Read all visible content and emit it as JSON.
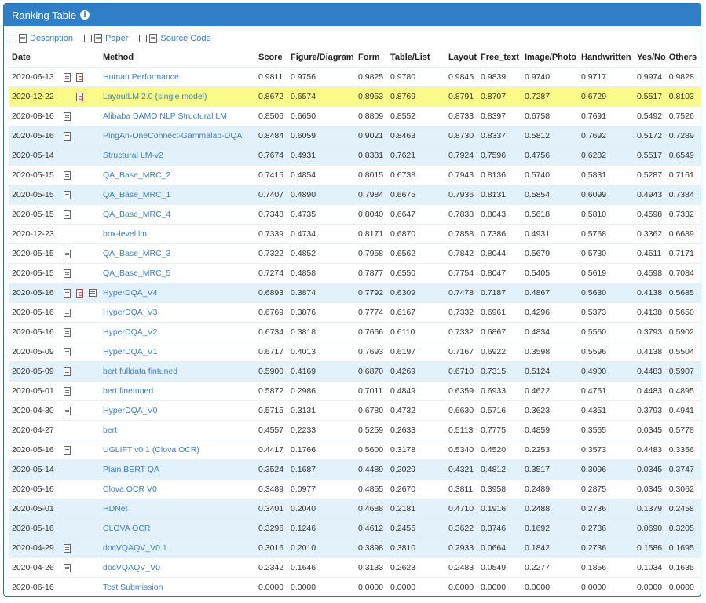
{
  "panel": {
    "title": "Ranking Table"
  },
  "filters": {
    "description": "Description",
    "paper": "Paper",
    "source_code": "Source Code"
  },
  "table": {
    "headers": [
      "Date",
      "Method",
      "Score",
      "Figure/Diagram",
      "Form",
      "Table/List",
      "Layout",
      "Free_text",
      "Image/Photo",
      "Handwritten",
      "Yes/No",
      "Others"
    ],
    "rows": [
      {
        "date": "2020-06-13",
        "icons": [
          "doc",
          "pdf"
        ],
        "method": "Human Performance",
        "values": [
          "0.9811",
          "0.9756",
          "0.9825",
          "0.9780",
          "0.9845",
          "0.9839",
          "0.9740",
          "0.9717",
          "0.9974",
          "0.9828"
        ],
        "style": ""
      },
      {
        "date": "2020-12-22",
        "icons": [
          "",
          "pdf"
        ],
        "method": "LayoutLM 2.0 (single model)",
        "values": [
          "0.8672",
          "0.6574",
          "0.8953",
          "0.8769",
          "0.8791",
          "0.8707",
          "0.7287",
          "0.6729",
          "0.5517",
          "0.8103"
        ],
        "style": "yellow"
      },
      {
        "date": "2020-08-16",
        "icons": [
          "doc"
        ],
        "method": "Alibaba DAMO NLP Structural LM",
        "values": [
          "0.8506",
          "0.6650",
          "0.8809",
          "0.8552",
          "0.8733",
          "0.8397",
          "0.6758",
          "0.7691",
          "0.5492",
          "0.7526"
        ],
        "style": ""
      },
      {
        "date": "2020-05-16",
        "icons": [
          "doc"
        ],
        "method": "PingAn-OneConnect-Gammalab-DQA",
        "values": [
          "0.8484",
          "0.6059",
          "0.9021",
          "0.8463",
          "0.8730",
          "0.8337",
          "0.5812",
          "0.7692",
          "0.5172",
          "0.7289"
        ],
        "style": "blue"
      },
      {
        "date": "2020-05-14",
        "icons": [],
        "method": "Structural LM-v2",
        "values": [
          "0.7674",
          "0.4931",
          "0.8381",
          "0.7621",
          "0.7924",
          "0.7596",
          "0.4756",
          "0.6282",
          "0.5517",
          "0.6549"
        ],
        "style": "blue"
      },
      {
        "date": "2020-05-15",
        "icons": [
          "doc"
        ],
        "method": "QA_Base_MRC_2",
        "values": [
          "0.7415",
          "0.4854",
          "0.8015",
          "0.6738",
          "0.7943",
          "0.8136",
          "0.5740",
          "0.5831",
          "0.5287",
          "0.7161"
        ],
        "style": ""
      },
      {
        "date": "2020-05-15",
        "icons": [
          "doc"
        ],
        "method": "QA_Base_MRC_1",
        "values": [
          "0.7407",
          "0.4890",
          "0.7984",
          "0.6675",
          "0.7936",
          "0.8131",
          "0.5854",
          "0.6099",
          "0.4943",
          "0.7384"
        ],
        "style": "blue"
      },
      {
        "date": "2020-05-15",
        "icons": [
          "doc"
        ],
        "method": "QA_Base_MRC_4",
        "values": [
          "0.7348",
          "0.4735",
          "0.8040",
          "0.6647",
          "0.7838",
          "0.8043",
          "0.5618",
          "0.5810",
          "0.4598",
          "0.7332"
        ],
        "style": ""
      },
      {
        "date": "2020-12-23",
        "icons": [],
        "method": "box-level lm",
        "values": [
          "0.7339",
          "0.4734",
          "0.8171",
          "0.6870",
          "0.7858",
          "0.7386",
          "0.4931",
          "0.5768",
          "0.3362",
          "0.6689"
        ],
        "style": ""
      },
      {
        "date": "2020-05-15",
        "icons": [
          "doc"
        ],
        "method": "QA_Base_MRC_3",
        "values": [
          "0.7322",
          "0.4852",
          "0.7958",
          "0.6562",
          "0.7842",
          "0.8044",
          "0.5679",
          "0.5730",
          "0.4511",
          "0.7171"
        ],
        "style": ""
      },
      {
        "date": "2020-05-15",
        "icons": [
          "doc"
        ],
        "method": "QA_Base_MRC_5",
        "values": [
          "0.7274",
          "0.4858",
          "0.7877",
          "0.6550",
          "0.7754",
          "0.8047",
          "0.5405",
          "0.5619",
          "0.4598",
          "0.7084"
        ],
        "style": ""
      },
      {
        "date": "2020-05-16",
        "icons": [
          "doc",
          "pdf",
          "code"
        ],
        "method": "HyperDQA_V4",
        "values": [
          "0.6893",
          "0.3874",
          "0.7792",
          "0.6309",
          "0.7478",
          "0.7187",
          "0.4867",
          "0.5630",
          "0.4138",
          "0.5685"
        ],
        "style": "blue"
      },
      {
        "date": "2020-05-16",
        "icons": [
          "doc"
        ],
        "method": "HyperDQA_V3",
        "values": [
          "0.6769",
          "0.3876",
          "0.7774",
          "0.6167",
          "0.7332",
          "0.6961",
          "0.4296",
          "0.5373",
          "0.4138",
          "0.5650"
        ],
        "style": ""
      },
      {
        "date": "2020-05-16",
        "icons": [
          "doc"
        ],
        "method": "HyperDQA_V2",
        "values": [
          "0.6734",
          "0.3818",
          "0.7666",
          "0.6110",
          "0.7332",
          "0.6867",
          "0.4834",
          "0.5560",
          "0.3793",
          "0.5902"
        ],
        "style": ""
      },
      {
        "date": "2020-05-09",
        "icons": [
          "doc"
        ],
        "method": "HyperDQA_V1",
        "values": [
          "0.6717",
          "0.4013",
          "0.7693",
          "0.6197",
          "0.7167",
          "0.6922",
          "0.3598",
          "0.5596",
          "0.4138",
          "0.5504"
        ],
        "style": ""
      },
      {
        "date": "2020-05-09",
        "icons": [
          "doc"
        ],
        "method": "bert fulldata fintuned",
        "values": [
          "0.5900",
          "0.4169",
          "0.6870",
          "0.4269",
          "0.6710",
          "0.7315",
          "0.5124",
          "0.4900",
          "0.4483",
          "0.5907"
        ],
        "style": "blue"
      },
      {
        "date": "2020-05-01",
        "icons": [
          "doc"
        ],
        "method": "bert finetuned",
        "values": [
          "0.5872",
          "0.2986",
          "0.7011",
          "0.4849",
          "0.6359",
          "0.6933",
          "0.4622",
          "0.4751",
          "0.4483",
          "0.4895"
        ],
        "style": ""
      },
      {
        "date": "2020-04-30",
        "icons": [
          "doc"
        ],
        "method": "HyperDQA_V0",
        "values": [
          "0.5715",
          "0.3131",
          "0.6780",
          "0.4732",
          "0.6630",
          "0.5716",
          "0.3623",
          "0.4351",
          "0.3793",
          "0.4941"
        ],
        "style": ""
      },
      {
        "date": "2020-04-27",
        "icons": [],
        "method": "bert",
        "values": [
          "0.4557",
          "0.2233",
          "0.5259",
          "0.2633",
          "0.5113",
          "0.7775",
          "0.4859",
          "0.3565",
          "0.0345",
          "0.5778"
        ],
        "style": ""
      },
      {
        "date": "2020-05-16",
        "icons": [
          "doc"
        ],
        "method": "UGLIFT v0.1 (Clova OCR)",
        "values": [
          "0.4417",
          "0.1766",
          "0.5600",
          "0.3178",
          "0.5340",
          "0.4520",
          "0.2253",
          "0.3573",
          "0.4483",
          "0.3356"
        ],
        "style": ""
      },
      {
        "date": "2020-05-14",
        "icons": [],
        "method": "Plain BERT QA",
        "values": [
          "0.3524",
          "0.1687",
          "0.4489",
          "0.2029",
          "0.4321",
          "0.4812",
          "0.3517",
          "0.3096",
          "0.0345",
          "0.3747"
        ],
        "style": "blue"
      },
      {
        "date": "2020-05-16",
        "icons": [],
        "method": "Clova OCR V0",
        "values": [
          "0.3489",
          "0.0977",
          "0.4855",
          "0.2670",
          "0.3811",
          "0.3958",
          "0.2489",
          "0.2875",
          "0.0345",
          "0.3062"
        ],
        "style": ""
      },
      {
        "date": "2020-05-01",
        "icons": [],
        "method": "HDNet",
        "values": [
          "0.3401",
          "0.2040",
          "0.4688",
          "0.2181",
          "0.4710",
          "0.1916",
          "0.2488",
          "0.2736",
          "0.1379",
          "0.2458"
        ],
        "style": "blue"
      },
      {
        "date": "2020-05-16",
        "icons": [],
        "method": "CLOVA OCR",
        "values": [
          "0.3296",
          "0.1246",
          "0.4612",
          "0.2455",
          "0.3622",
          "0.3746",
          "0.1692",
          "0.2736",
          "0.0690",
          "0.3205"
        ],
        "style": "blue"
      },
      {
        "date": "2020-04-29",
        "icons": [
          "doc"
        ],
        "method": "docVQAQV_V0.1",
        "values": [
          "0.3016",
          "0.2010",
          "0.3898",
          "0.3810",
          "0.2933",
          "0.0664",
          "0.1842",
          "0.2736",
          "0.1586",
          "0.1695"
        ],
        "style": "blue"
      },
      {
        "date": "2020-04-26",
        "icons": [
          "doc"
        ],
        "method": "docVQAQV_V0",
        "values": [
          "0.2342",
          "0.1646",
          "0.3133",
          "0.2623",
          "0.2483",
          "0.0549",
          "0.2277",
          "0.1856",
          "0.1034",
          "0.1635"
        ],
        "style": ""
      },
      {
        "date": "2020-06-16",
        "icons": [],
        "method": "Test Submission",
        "values": [
          "0.0000",
          "0.0000",
          "0.0000",
          "0.0000",
          "0.0000",
          "0.0000",
          "0.0000",
          "0.0000",
          "0.0000",
          "0.0000"
        ],
        "style": ""
      }
    ]
  }
}
